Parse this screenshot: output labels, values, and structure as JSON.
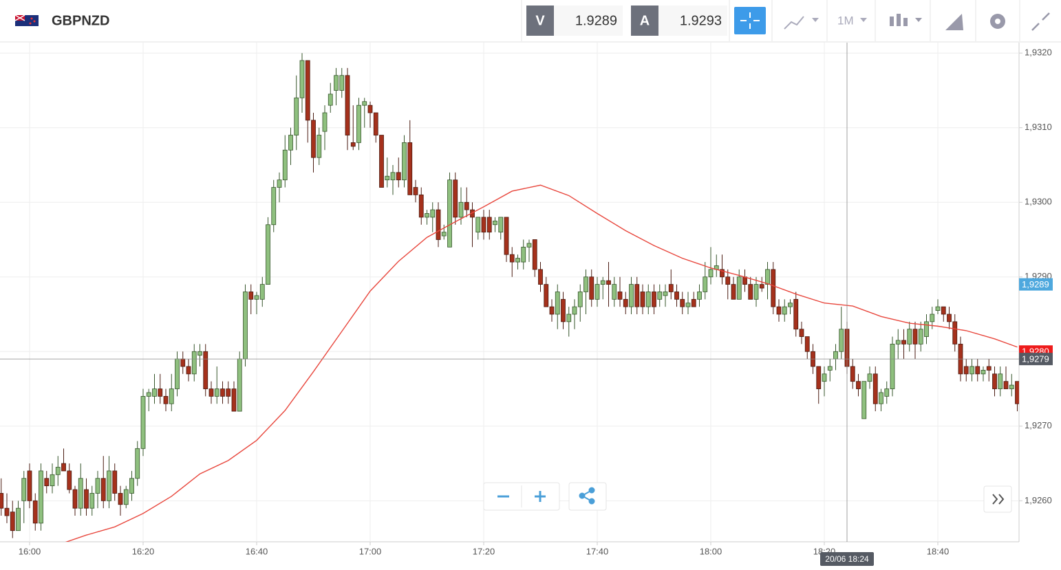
{
  "toolbar": {
    "symbol": "GBPNZD",
    "bid_tag": "V",
    "bid": "1.9289",
    "ask_tag": "A",
    "ask": "1.9293",
    "timeframe": "1M"
  },
  "chart_data": {
    "type": "candlestick",
    "up_color": "#8fc07f",
    "down_color": "#a5311c",
    "up_edge": "#35552a",
    "down_edge": "#4a1a10",
    "categories": [
      "15:55",
      "15:56",
      "15:57",
      "15:58",
      "15:59",
      "16:00",
      "16:01",
      "16:02",
      "16:03",
      "16:04",
      "16:05",
      "16:06",
      "16:07",
      "16:08",
      "16:09",
      "16:10",
      "16:11",
      "16:12",
      "16:13",
      "16:14",
      "16:15",
      "16:16",
      "16:17",
      "16:18",
      "16:19",
      "16:20",
      "16:21",
      "16:22",
      "16:23",
      "16:24",
      "16:25",
      "16:26",
      "16:27",
      "16:28",
      "16:29",
      "16:30",
      "16:31",
      "16:32",
      "16:33",
      "16:34",
      "16:35",
      "16:36",
      "16:37",
      "16:38",
      "16:39",
      "16:40",
      "16:41",
      "16:42",
      "16:43",
      "16:44",
      "16:45",
      "16:46",
      "16:47",
      "16:48",
      "16:49",
      "16:50",
      "16:51",
      "16:52",
      "16:53",
      "16:54",
      "16:55",
      "16:56",
      "16:57",
      "16:58",
      "16:59",
      "17:00",
      "17:01",
      "17:02",
      "17:03",
      "17:04",
      "17:05",
      "17:06",
      "17:07",
      "17:08",
      "17:09",
      "17:10",
      "17:11",
      "17:12",
      "17:13",
      "17:14",
      "17:15",
      "17:16",
      "17:17",
      "17:18",
      "17:19",
      "17:20",
      "17:21",
      "17:22",
      "17:23",
      "17:24",
      "17:25",
      "17:26",
      "17:27",
      "17:28",
      "17:29",
      "17:30",
      "17:31",
      "17:32",
      "17:33",
      "17:34",
      "17:35",
      "17:36",
      "17:37",
      "17:38",
      "17:39",
      "17:40",
      "17:41",
      "17:42",
      "17:43",
      "17:44",
      "17:45",
      "17:46",
      "17:47",
      "17:48",
      "17:49",
      "17:50",
      "17:51",
      "17:52",
      "17:53",
      "17:54",
      "17:55",
      "17:56",
      "17:57",
      "17:58",
      "17:59",
      "18:00",
      "18:01",
      "18:02",
      "18:03",
      "18:04",
      "18:05",
      "18:06",
      "18:07",
      "18:08",
      "18:09",
      "18:10",
      "18:11",
      "18:12",
      "18:13",
      "18:14",
      "18:15",
      "18:16",
      "18:17",
      "18:18",
      "18:19",
      "18:20",
      "18:21",
      "18:22",
      "18:23",
      "18:24",
      "18:25",
      "18:26",
      "18:27",
      "18:28",
      "18:29",
      "18:30",
      "18:31",
      "18:32",
      "18:33",
      "18:34",
      "18:35",
      "18:36",
      "18:37",
      "18:38",
      "18:39",
      "18:40",
      "18:41",
      "18:42",
      "18:43",
      "18:44",
      "18:45",
      "18:46",
      "18:47",
      "18:48",
      "18:49",
      "18:50",
      "18:51",
      "18:52",
      "18:53",
      "18:54"
    ],
    "values": [
      [
        1.9261,
        1.9263,
        1.9258,
        1.9259
      ],
      [
        1.9259,
        1.9261,
        1.9257,
        1.9258
      ],
      [
        1.92585,
        1.926,
        1.9255,
        1.9256
      ],
      [
        1.9256,
        1.926,
        1.9256,
        1.9259
      ],
      [
        1.926,
        1.9264,
        1.9257,
        1.9263
      ],
      [
        1.9264,
        1.9265,
        1.9259,
        1.926
      ],
      [
        1.926,
        1.9261,
        1.9256,
        1.9257
      ],
      [
        1.9257,
        1.9265,
        1.9256,
        1.9264
      ],
      [
        1.9263,
        1.9264,
        1.9261,
        1.9262
      ],
      [
        1.9262,
        1.9265,
        1.9261,
        1.92635
      ],
      [
        1.92635,
        1.9266,
        1.9262,
        1.92645
      ],
      [
        1.9265,
        1.9267,
        1.9264,
        1.9264
      ],
      [
        1.9264,
        1.9265,
        1.9261,
        1.92615
      ],
      [
        1.92615,
        1.9262,
        1.9258,
        1.9259
      ],
      [
        1.9259,
        1.9265,
        1.9258,
        1.9263
      ],
      [
        1.92615,
        1.9263,
        1.9258,
        1.9259
      ],
      [
        1.9259,
        1.9262,
        1.9258,
        1.9261
      ],
      [
        1.9261,
        1.9264,
        1.9259,
        1.9263
      ],
      [
        1.9263,
        1.9266,
        1.9259,
        1.926
      ],
      [
        1.926,
        1.9266,
        1.9259,
        1.9264
      ],
      [
        1.9264,
        1.9265,
        1.926,
        1.9261
      ],
      [
        1.9261,
        1.9262,
        1.9258,
        1.92595
      ],
      [
        1.92595,
        1.9262,
        1.9259,
        1.92615
      ],
      [
        1.9261,
        1.9264,
        1.926,
        1.9263
      ],
      [
        1.9263,
        1.9268,
        1.9262,
        1.9267
      ],
      [
        1.9267,
        1.9275,
        1.9266,
        1.9274
      ],
      [
        1.9274,
        1.9275,
        1.9272,
        1.92745
      ],
      [
        1.9274,
        1.9277,
        1.9273,
        1.9275
      ],
      [
        1.9275,
        1.9277,
        1.9273,
        1.9274
      ],
      [
        1.9274,
        1.9275,
        1.9272,
        1.9273
      ],
      [
        1.9273,
        1.9277,
        1.9272,
        1.9275
      ],
      [
        1.9275,
        1.928,
        1.9274,
        1.9279
      ],
      [
        1.9279,
        1.928,
        1.9277,
        1.9278
      ],
      [
        1.9278,
        1.9279,
        1.9276,
        1.9277
      ],
      [
        1.9277,
        1.9281,
        1.9276,
        1.928
      ],
      [
        1.92795,
        1.9281,
        1.9278,
        1.928
      ],
      [
        1.928,
        1.9281,
        1.9274,
        1.9275
      ],
      [
        1.9275,
        1.9276,
        1.9273,
        1.9274
      ],
      [
        1.9274,
        1.9278,
        1.9273,
        1.9275
      ],
      [
        1.9275,
        1.9276,
        1.9273,
        1.9274
      ],
      [
        1.9275,
        1.9276,
        1.9273,
        1.9274
      ],
      [
        1.9275,
        1.9276,
        1.9272,
        1.9272
      ],
      [
        1.9272,
        1.928,
        1.9272,
        1.9279
      ],
      [
        1.9279,
        1.9289,
        1.9278,
        1.9288
      ],
      [
        1.9288,
        1.9289,
        1.9285,
        1.9287
      ],
      [
        1.9287,
        1.9288,
        1.9285,
        1.92875
      ],
      [
        1.9287,
        1.929,
        1.9286,
        1.9289
      ],
      [
        1.9289,
        1.9298,
        1.9289,
        1.9297
      ],
      [
        1.9297,
        1.9303,
        1.9296,
        1.9302
      ],
      [
        1.9302,
        1.9304,
        1.93,
        1.9303
      ],
      [
        1.9303,
        1.9309,
        1.9302,
        1.9307
      ],
      [
        1.9307,
        1.931,
        1.9305,
        1.9309
      ],
      [
        1.9309,
        1.9317,
        1.9307,
        1.9314
      ],
      [
        1.9314,
        1.932,
        1.9312,
        1.9319
      ],
      [
        1.9319,
        1.9319,
        1.9308,
        1.9311
      ],
      [
        1.9311,
        1.9312,
        1.9304,
        1.9306
      ],
      [
        1.9306,
        1.931,
        1.9305,
        1.9309
      ],
      [
        1.93095,
        1.9313,
        1.9307,
        1.9312
      ],
      [
        1.9313,
        1.9316,
        1.9312,
        1.93145
      ],
      [
        1.9315,
        1.9318,
        1.9313,
        1.9317
      ],
      [
        1.9315,
        1.9318,
        1.9314,
        1.9317
      ],
      [
        1.9317,
        1.9318,
        1.9307,
        1.9309
      ],
      [
        1.9308,
        1.9313,
        1.9307,
        1.93075
      ],
      [
        1.9308,
        1.9314,
        1.9307,
        1.9313
      ],
      [
        1.9313,
        1.9314,
        1.931,
        1.93135
      ],
      [
        1.9313,
        1.93135,
        1.931,
        1.9312
      ],
      [
        1.9312,
        1.9312,
        1.9308,
        1.9309
      ],
      [
        1.9309,
        1.9309,
        1.9302,
        1.9302
      ],
      [
        1.9303,
        1.9306,
        1.9302,
        1.93035
      ],
      [
        1.9303,
        1.9305,
        1.9301,
        1.9304
      ],
      [
        1.9304,
        1.9306,
        1.9302,
        1.9303
      ],
      [
        1.9303,
        1.9309,
        1.9302,
        1.9308
      ],
      [
        1.9308,
        1.9311,
        1.9301,
        1.9301
      ],
      [
        1.9302,
        1.9303,
        1.93,
        1.9301
      ],
      [
        1.9301,
        1.9302,
        1.9297,
        1.9298
      ],
      [
        1.9298,
        1.9299,
        1.9297,
        1.92985
      ],
      [
        1.9298,
        1.93,
        1.9296,
        1.9299
      ],
      [
        1.9299,
        1.93,
        1.9294,
        1.9295
      ],
      [
        1.92955,
        1.9297,
        1.9295,
        1.9296
      ],
      [
        1.9294,
        1.9304,
        1.9294,
        1.9303
      ],
      [
        1.9303,
        1.9304,
        1.9297,
        1.9298
      ],
      [
        1.9298,
        1.9302,
        1.9297,
        1.93
      ],
      [
        1.93,
        1.9302,
        1.9298,
        1.9299
      ],
      [
        1.9299,
        1.93,
        1.9294,
        1.9298
      ],
      [
        1.9296,
        1.9298,
        1.9295,
        1.9298
      ],
      [
        1.9298,
        1.9299,
        1.9295,
        1.9296
      ],
      [
        1.9298,
        1.9299,
        1.9295,
        1.9296
      ],
      [
        1.9297,
        1.9298,
        1.9296,
        1.92975
      ],
      [
        1.9296,
        1.9298,
        1.9295,
        1.9298
      ],
      [
        1.9298,
        1.9298,
        1.9292,
        1.9293
      ],
      [
        1.9293,
        1.9294,
        1.929,
        1.9292
      ],
      [
        1.9292,
        1.9293,
        1.9291,
        1.92925
      ],
      [
        1.9292,
        1.9295,
        1.9291,
        1.9294
      ],
      [
        1.9294,
        1.9295,
        1.9292,
        1.92945
      ],
      [
        1.9295,
        1.9295,
        1.929,
        1.9291
      ],
      [
        1.9291,
        1.9292,
        1.9288,
        1.9289
      ],
      [
        1.9289,
        1.929,
        1.9286,
        1.9286
      ],
      [
        1.9286,
        1.9287,
        1.9284,
        1.9285
      ],
      [
        1.9285,
        1.9289,
        1.9283,
        1.9288
      ],
      [
        1.9287,
        1.9288,
        1.9283,
        1.9284
      ],
      [
        1.9284,
        1.9286,
        1.9282,
        1.9285
      ],
      [
        1.9285,
        1.9287,
        1.9283,
        1.9286
      ],
      [
        1.9286,
        1.9289,
        1.9284,
        1.9288
      ],
      [
        1.9288,
        1.9291,
        1.9285,
        1.929
      ],
      [
        1.929,
        1.9291,
        1.9286,
        1.9287
      ],
      [
        1.9287,
        1.929,
        1.9286,
        1.9289
      ],
      [
        1.9289,
        1.929,
        1.9287,
        1.92895
      ],
      [
        1.92895,
        1.9292,
        1.9286,
        1.9289
      ],
      [
        1.9287,
        1.929,
        1.9286,
        1.9289
      ],
      [
        1.9288,
        1.929,
        1.9286,
        1.9287
      ],
      [
        1.9287,
        1.9288,
        1.9285,
        1.9286
      ],
      [
        1.9286,
        1.929,
        1.9285,
        1.9289
      ],
      [
        1.9289,
        1.929,
        1.9285,
        1.9286
      ],
      [
        1.9288,
        1.9289,
        1.9285,
        1.9286
      ],
      [
        1.9286,
        1.9289,
        1.9285,
        1.9288
      ],
      [
        1.9288,
        1.9289,
        1.9285,
        1.9286
      ],
      [
        1.9287,
        1.9289,
        1.9286,
        1.9288
      ],
      [
        1.92875,
        1.9289,
        1.9286,
        1.9288
      ],
      [
        1.9289,
        1.9291,
        1.9287,
        1.9288
      ],
      [
        1.9288,
        1.9289,
        1.9286,
        1.9287
      ],
      [
        1.9287,
        1.9288,
        1.9285,
        1.9286
      ],
      [
        1.9286,
        1.9288,
        1.9285,
        1.92865
      ],
      [
        1.9287,
        1.9288,
        1.9286,
        1.9286
      ],
      [
        1.9287,
        1.9289,
        1.9286,
        1.9288
      ],
      [
        1.9288,
        1.9292,
        1.9287,
        1.929
      ],
      [
        1.929,
        1.9294,
        1.9289,
        1.9291
      ],
      [
        1.9291,
        1.9293,
        1.929,
        1.92915
      ],
      [
        1.9291,
        1.9293,
        1.9289,
        1.929
      ],
      [
        1.929,
        1.9291,
        1.9287,
        1.9289
      ],
      [
        1.9289,
        1.929,
        1.9287,
        1.9287
      ],
      [
        1.9287,
        1.9291,
        1.9287,
        1.929
      ],
      [
        1.929,
        1.9291,
        1.9288,
        1.9289
      ],
      [
        1.9289,
        1.929,
        1.9287,
        1.9287
      ],
      [
        1.9287,
        1.929,
        1.9286,
        1.9289
      ],
      [
        1.9289,
        1.929,
        1.9288,
        1.92885
      ],
      [
        1.9289,
        1.9292,
        1.9287,
        1.9291
      ],
      [
        1.9291,
        1.9292,
        1.9285,
        1.9286
      ],
      [
        1.9286,
        1.9287,
        1.9284,
        1.9285
      ],
      [
        1.9285,
        1.9287,
        1.9284,
        1.9286
      ],
      [
        1.9286,
        1.9287,
        1.9285,
        1.92865
      ],
      [
        1.9287,
        1.9288,
        1.9282,
        1.9283
      ],
      [
        1.9283,
        1.9284,
        1.9281,
        1.9282
      ],
      [
        1.9282,
        1.9282,
        1.9279,
        1.928
      ],
      [
        1.928,
        1.9281,
        1.9277,
        1.9278
      ],
      [
        1.9278,
        1.9278,
        1.9273,
        1.9275
      ],
      [
        1.9276,
        1.9278,
        1.9274,
        1.9277
      ],
      [
        1.92775,
        1.9279,
        1.9276,
        1.9278
      ],
      [
        1.9279,
        1.9281,
        1.92775,
        1.928
      ],
      [
        1.928,
        1.9286,
        1.9279,
        1.9283
      ],
      [
        1.9283,
        1.9284,
        1.9277,
        1.9278
      ],
      [
        1.9278,
        1.9279,
        1.9275,
        1.9276
      ],
      [
        1.9276,
        1.9277,
        1.9274,
        1.9275
      ],
      [
        1.9271,
        1.9276,
        1.9271,
        1.9276
      ],
      [
        1.9276,
        1.9278,
        1.9275,
        1.9277
      ],
      [
        1.9277,
        1.9278,
        1.9272,
        1.9273
      ],
      [
        1.9273,
        1.9275,
        1.9272,
        1.92745
      ],
      [
        1.9274,
        1.9276,
        1.9273,
        1.9275
      ],
      [
        1.9275,
        1.9282,
        1.9274,
        1.9281
      ],
      [
        1.9281,
        1.9283,
        1.9279,
        1.92815
      ],
      [
        1.92815,
        1.9283,
        1.9279,
        1.9281
      ],
      [
        1.9281,
        1.9284,
        1.928,
        1.9283
      ],
      [
        1.9283,
        1.9284,
        1.9279,
        1.9281
      ],
      [
        1.9281,
        1.9284,
        1.928,
        1.9283
      ],
      [
        1.9282,
        1.9285,
        1.9281,
        1.9284
      ],
      [
        1.9284,
        1.9286,
        1.9283,
        1.9285
      ],
      [
        1.92855,
        1.9287,
        1.9285,
        1.9286
      ],
      [
        1.9286,
        1.9286,
        1.9284,
        1.9285
      ],
      [
        1.9285,
        1.9286,
        1.9283,
        1.9284
      ],
      [
        1.9284,
        1.9285,
        1.928,
        1.9281
      ],
      [
        1.9281,
        1.9282,
        1.9276,
        1.9277
      ],
      [
        1.9278,
        1.9279,
        1.9276,
        1.9277
      ],
      [
        1.9277,
        1.9279,
        1.9276,
        1.9278
      ],
      [
        1.9278,
        1.9279,
        1.9276,
        1.9277
      ],
      [
        1.9277,
        1.9278,
        1.9276,
        1.92775
      ],
      [
        1.9278,
        1.9279,
        1.9276,
        1.92775
      ],
      [
        1.9277,
        1.9278,
        1.9274,
        1.9275
      ],
      [
        1.9275,
        1.9278,
        1.9274,
        1.9277
      ],
      [
        1.9276,
        1.9278,
        1.9275,
        1.9275
      ],
      [
        1.9275,
        1.9277,
        1.9274,
        1.92755
      ],
      [
        1.9276,
        1.9276,
        1.9272,
        1.9273
      ]
    ],
    "moving_average": {
      "color": "#e8463c",
      "x": [
        "16:05",
        "16:10",
        "16:15",
        "16:20",
        "16:25",
        "16:30",
        "16:35",
        "16:40",
        "16:45",
        "16:50",
        "16:55",
        "17:00",
        "17:05",
        "17:10",
        "17:15",
        "17:20",
        "17:25",
        "17:30",
        "17:35",
        "17:40",
        "17:45",
        "17:50",
        "17:55",
        "18:00",
        "18:05",
        "18:10",
        "18:15",
        "18:20",
        "18:25",
        "18:30",
        "18:35",
        "18:40",
        "18:45",
        "18:50",
        "18:54"
      ],
      "values": [
        1.92541,
        1.92554,
        1.92565,
        1.92583,
        1.92606,
        1.92636,
        1.92654,
        1.92681,
        1.92721,
        1.92773,
        1.92827,
        1.92881,
        1.92921,
        1.92953,
        1.92974,
        1.92994,
        1.93015,
        1.93023,
        1.93009,
        1.92985,
        1.92962,
        1.92942,
        1.92925,
        1.92912,
        1.92902,
        1.92891,
        1.92877,
        1.92865,
        1.92861,
        1.92847,
        1.92838,
        1.92834,
        1.92828,
        1.92817,
        1.92806
      ]
    },
    "ylim": [
      1.92545,
      1.93214
    ],
    "yticks": [
      {
        "value": 1.926,
        "label": "1,9260"
      },
      {
        "value": 1.927,
        "label": "1,9270"
      },
      {
        "value": 1.928,
        "label": "1,9280"
      },
      {
        "value": 1.929,
        "label": "1,9290"
      },
      {
        "value": 1.93,
        "label": "1,9300"
      },
      {
        "value": 1.931,
        "label": "1,9310"
      },
      {
        "value": 1.932,
        "label": "1,9320"
      }
    ],
    "xticks": [
      "16:00",
      "16:20",
      "16:40",
      "17:00",
      "17:20",
      "17:40",
      "18:00",
      "18:20",
      "18:40"
    ],
    "grid": true,
    "price_markers": [
      {
        "value": 1.9289,
        "label": "1,9289",
        "color": "#4ea8de"
      },
      {
        "value": 1.928,
        "label": "1,9280",
        "color": "#ee1c1c"
      }
    ],
    "crosshair": {
      "x": "18:24",
      "x_label": "20/06 18:24",
      "y": 1.9279,
      "y_label": "1,9279"
    }
  }
}
